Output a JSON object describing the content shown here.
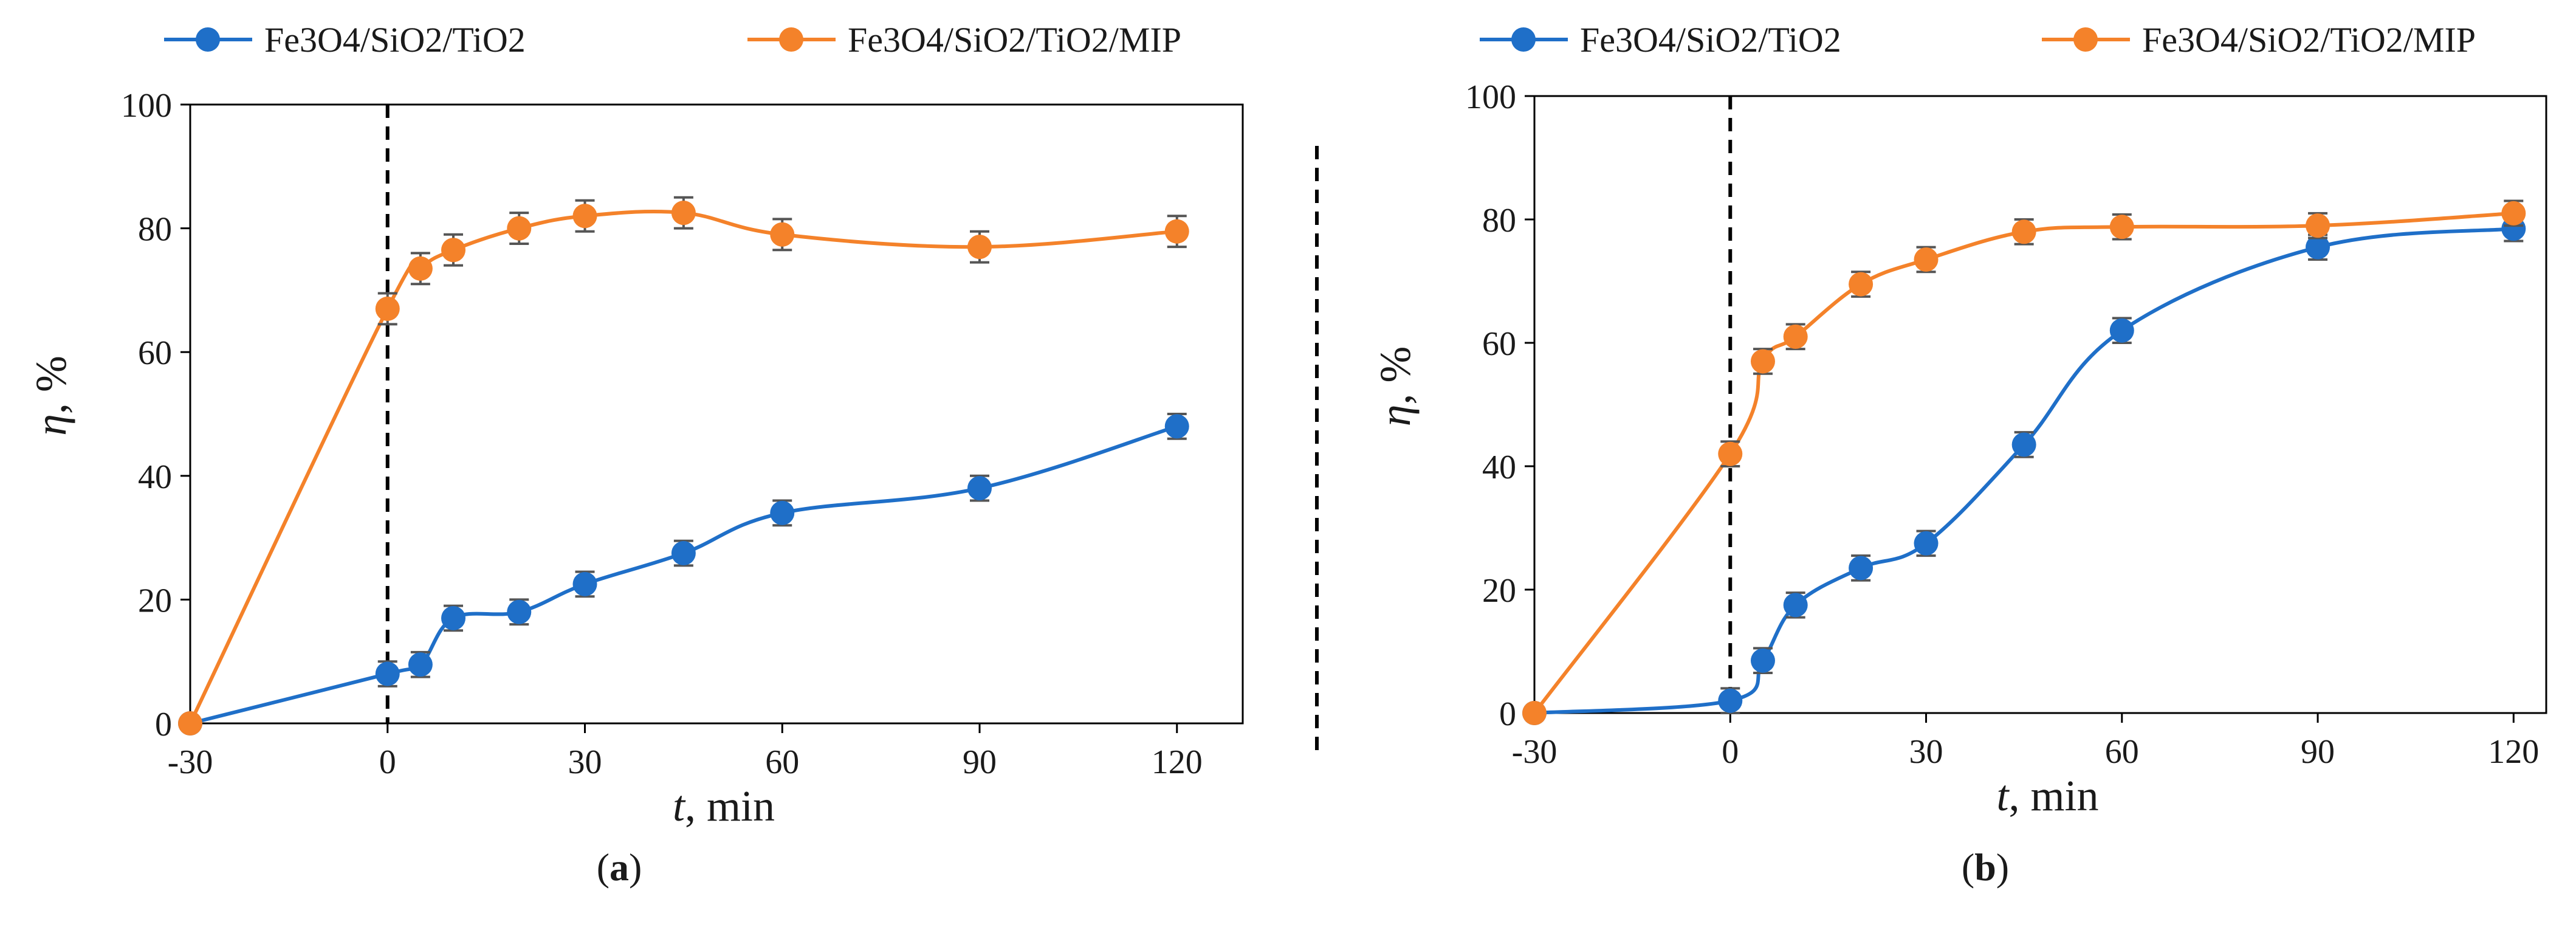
{
  "colors": {
    "blue": "#1f6fc8",
    "orange": "#f4822a",
    "axis": "#000000",
    "errorbar": "#555555"
  },
  "chart_data": [
    {
      "type": "line",
      "panel_label": "a",
      "xlabel": "t",
      "xlabel_unit": ", min",
      "ylabel": "η",
      "ylabel_unit": ", %",
      "xlim": [
        -30,
        130
      ],
      "ylim": [
        0,
        100
      ],
      "xticks": [
        -30,
        0,
        30,
        60,
        90,
        120
      ],
      "yticks": [
        0,
        20,
        40,
        60,
        80,
        100
      ],
      "vline_x": 0,
      "legend_position": "top",
      "series": [
        {
          "name": "Fe3O4/SiO2/TiO2",
          "color": "#1f6fc8",
          "x": [
            -30,
            0,
            5,
            10,
            20,
            30,
            45,
            60,
            90,
            120
          ],
          "y": [
            0,
            8,
            9.5,
            17,
            18,
            22.5,
            27.5,
            34,
            38,
            48
          ],
          "err": [
            0,
            2,
            2,
            2,
            2,
            2,
            2,
            2,
            2,
            2
          ]
        },
        {
          "name": "Fe3O4/SiO2/TiO2/MIP",
          "color": "#f4822a",
          "x": [
            -30,
            0,
            5,
            10,
            20,
            30,
            45,
            60,
            90,
            120
          ],
          "y": [
            0,
            67,
            73.5,
            76.5,
            80,
            82,
            82.5,
            79,
            77,
            79.5
          ],
          "err": [
            0,
            2.5,
            2.5,
            2.5,
            2.5,
            2.5,
            2.5,
            2.5,
            2.5,
            2.5
          ]
        }
      ]
    },
    {
      "type": "line",
      "panel_label": "b",
      "xlabel": "t",
      "xlabel_unit": ", min",
      "ylabel": "η",
      "ylabel_unit": ", %",
      "xlim": [
        -30,
        125
      ],
      "ylim": [
        0,
        100
      ],
      "xticks": [
        -30,
        0,
        30,
        60,
        90,
        120
      ],
      "yticks": [
        0,
        20,
        40,
        60,
        80,
        100
      ],
      "vline_x": 0,
      "legend_position": "top",
      "series": [
        {
          "name": "Fe3O4/SiO2/TiO2",
          "color": "#1f6fc8",
          "x": [
            -30,
            0,
            5,
            10,
            20,
            30,
            45,
            60,
            90,
            120
          ],
          "y": [
            0,
            2,
            8.5,
            17.5,
            23.5,
            27.5,
            43.5,
            62,
            75.5,
            78.5
          ],
          "err": [
            0,
            2,
            2,
            2,
            2,
            2,
            2,
            2,
            2,
            2
          ]
        },
        {
          "name": "Fe3O4/SiO2/TiO2/MIP",
          "color": "#f4822a",
          "x": [
            -30,
            0,
            5,
            10,
            20,
            30,
            45,
            60,
            90,
            120
          ],
          "y": [
            0,
            42,
            57,
            61,
            69.5,
            73.5,
            78,
            78.8,
            79,
            81
          ],
          "err": [
            0,
            2,
            2,
            2,
            2,
            2,
            2,
            2,
            2,
            2
          ]
        }
      ]
    }
  ]
}
